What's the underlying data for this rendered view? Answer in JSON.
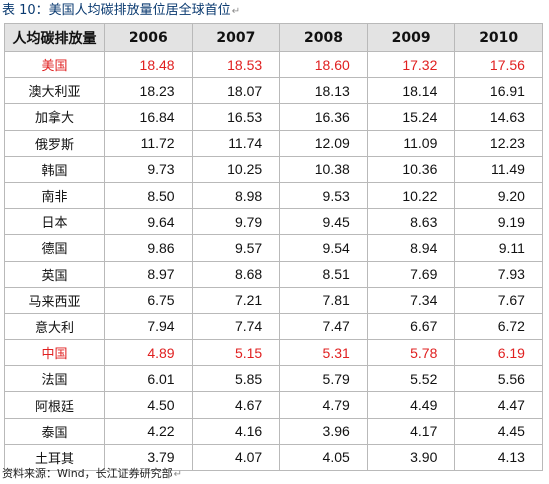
{
  "caption": "表 10：美国人均碳排放量位居全球首位",
  "footer": "资料来源：Wind，长江证券研究部",
  "table": {
    "header": [
      "人均碳排放量",
      "2006",
      "2007",
      "2008",
      "2009",
      "2010"
    ],
    "rows": [
      {
        "country": "美国",
        "values": [
          "18.48",
          "18.53",
          "18.60",
          "17.32",
          "17.56"
        ],
        "highlight": true
      },
      {
        "country": "澳大利亚",
        "values": [
          "18.23",
          "18.07",
          "18.13",
          "18.14",
          "16.91"
        ],
        "highlight": false
      },
      {
        "country": "加拿大",
        "values": [
          "16.84",
          "16.53",
          "16.36",
          "15.24",
          "14.63"
        ],
        "highlight": false
      },
      {
        "country": "俄罗斯",
        "values": [
          "11.72",
          "11.74",
          "12.09",
          "11.09",
          "12.23"
        ],
        "highlight": false
      },
      {
        "country": "韩国",
        "values": [
          "9.73",
          "10.25",
          "10.38",
          "10.36",
          "11.49"
        ],
        "highlight": false
      },
      {
        "country": "南非",
        "values": [
          "8.50",
          "8.98",
          "9.53",
          "10.22",
          "9.20"
        ],
        "highlight": false
      },
      {
        "country": "日本",
        "values": [
          "9.64",
          "9.79",
          "9.45",
          "8.63",
          "9.19"
        ],
        "highlight": false
      },
      {
        "country": "德国",
        "values": [
          "9.86",
          "9.57",
          "9.54",
          "8.94",
          "9.11"
        ],
        "highlight": false
      },
      {
        "country": "英国",
        "values": [
          "8.97",
          "8.68",
          "8.51",
          "7.69",
          "7.93"
        ],
        "highlight": false
      },
      {
        "country": "马来西亚",
        "values": [
          "6.75",
          "7.21",
          "7.81",
          "7.34",
          "7.67"
        ],
        "highlight": false
      },
      {
        "country": "意大利",
        "values": [
          "7.94",
          "7.74",
          "7.47",
          "6.67",
          "6.72"
        ],
        "highlight": false
      },
      {
        "country": "中国",
        "values": [
          "4.89",
          "5.15",
          "5.31",
          "5.78",
          "6.19"
        ],
        "highlight": true
      },
      {
        "country": "法国",
        "values": [
          "6.01",
          "5.85",
          "5.79",
          "5.52",
          "5.56"
        ],
        "highlight": false
      },
      {
        "country": "阿根廷",
        "values": [
          "4.50",
          "4.67",
          "4.79",
          "4.49",
          "4.47"
        ],
        "highlight": false
      },
      {
        "country": "泰国",
        "values": [
          "4.22",
          "4.16",
          "3.96",
          "4.17",
          "4.45"
        ],
        "highlight": false
      },
      {
        "country": "土耳其",
        "values": [
          "3.79",
          "4.07",
          "4.05",
          "3.90",
          "4.13"
        ],
        "highlight": false
      }
    ]
  },
  "colors": {
    "highlight_text": "#e02020",
    "caption_text": "#0a3a70",
    "header_background": "#e3e3e3",
    "grid_line": "#b9b9b9"
  }
}
